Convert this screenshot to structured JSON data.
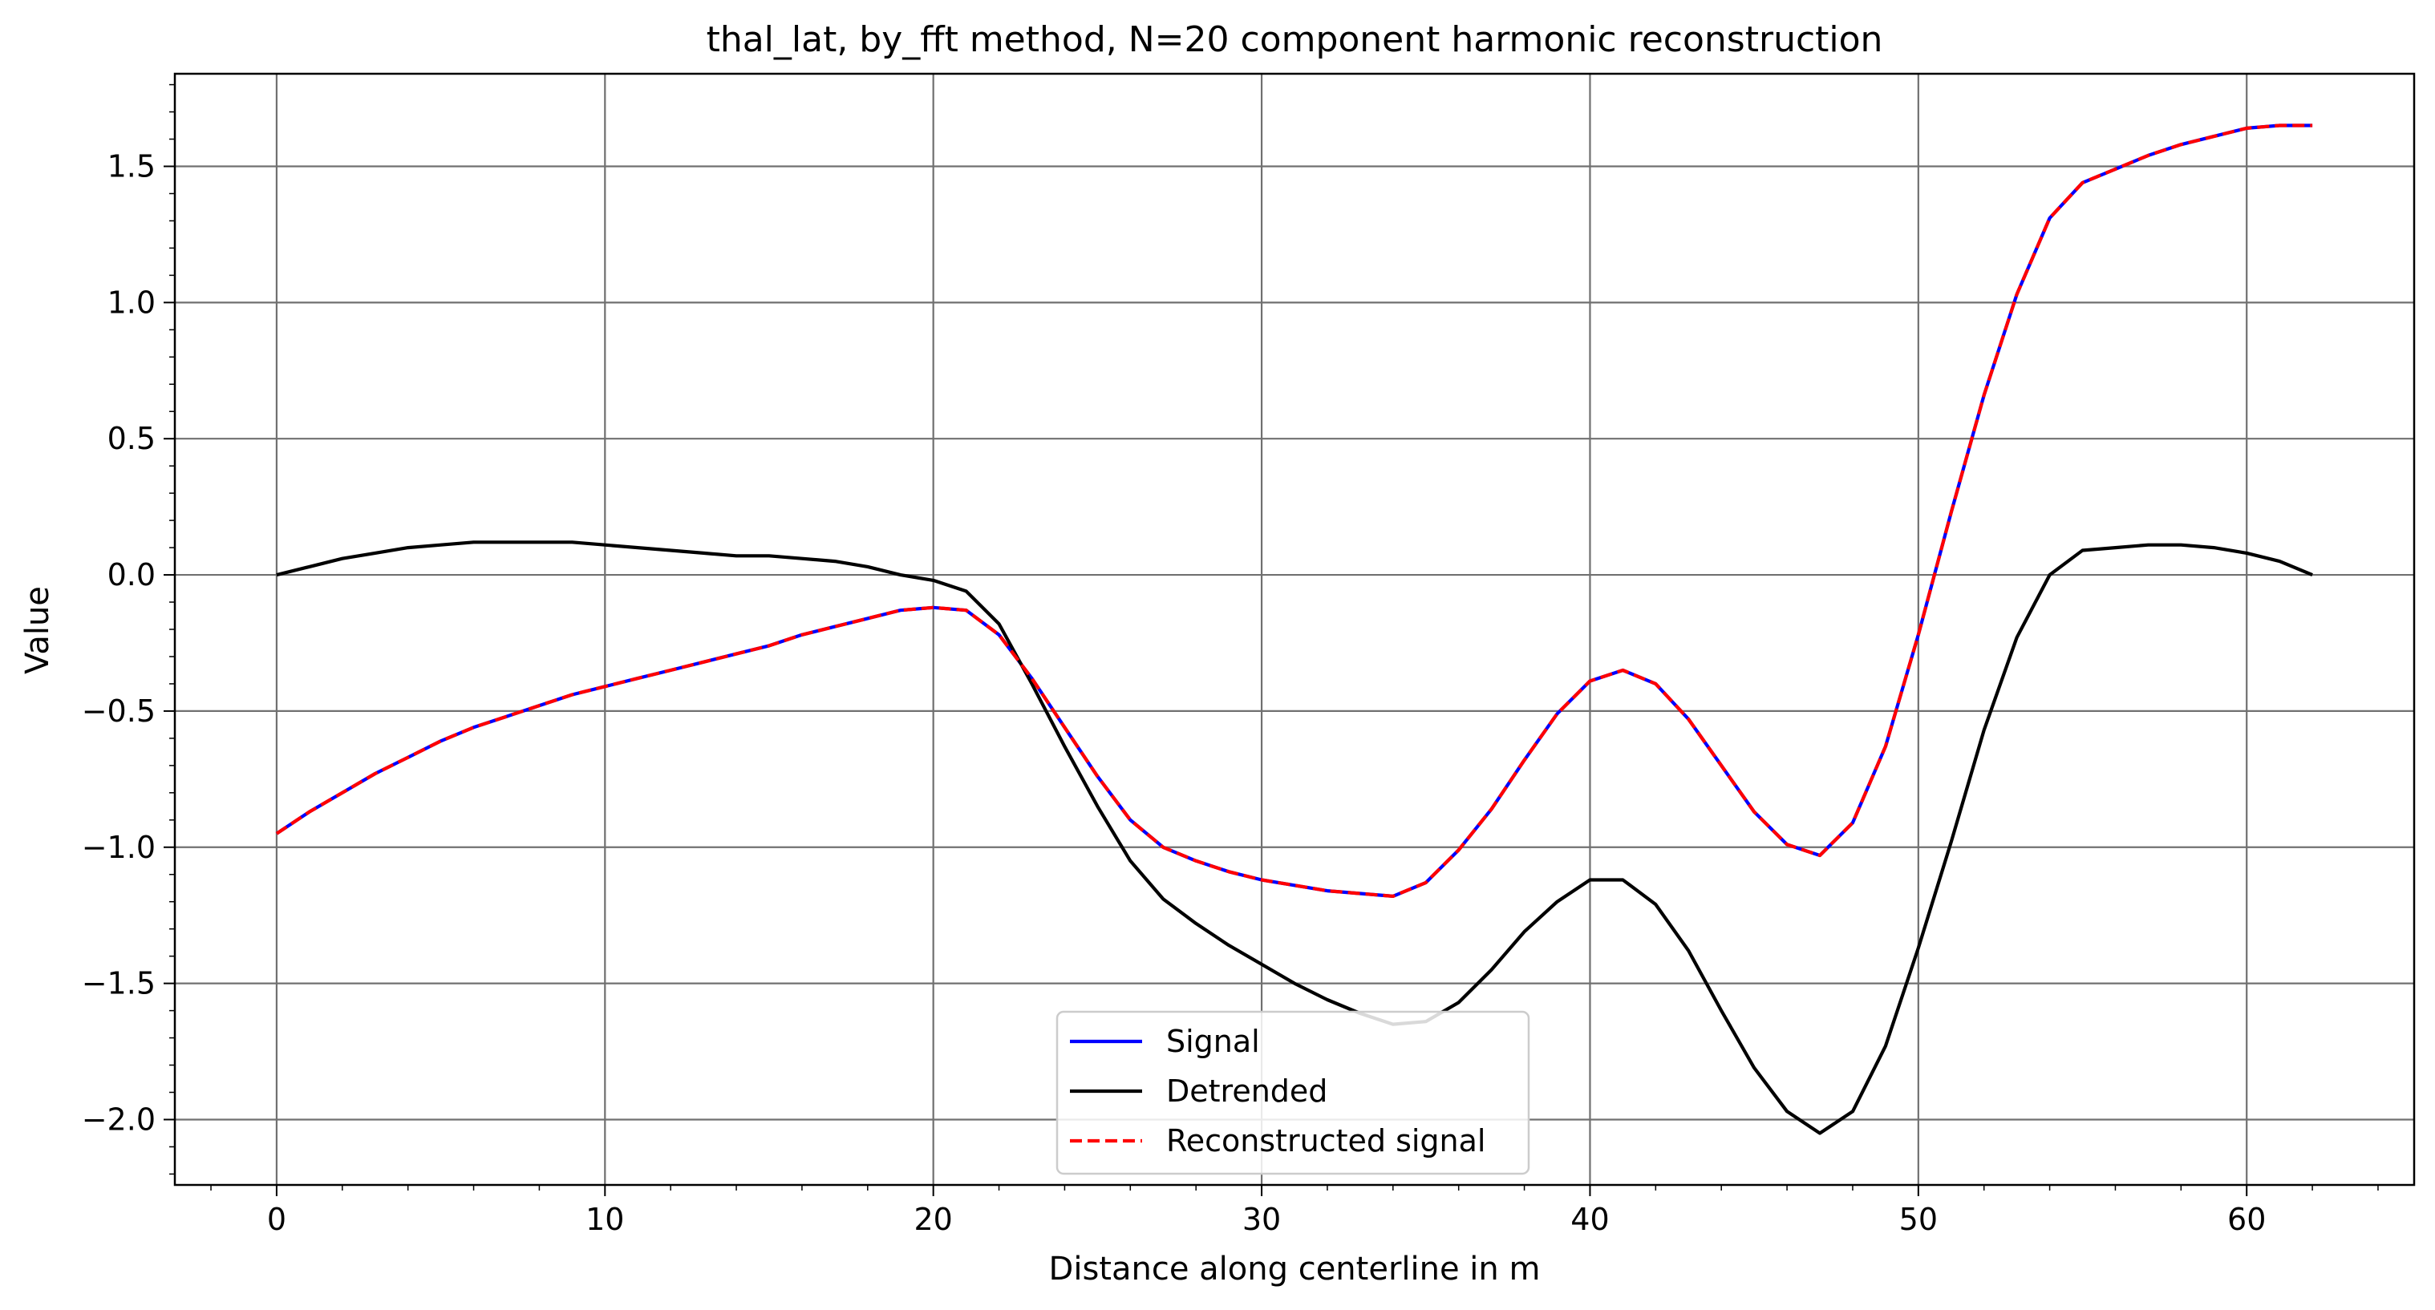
{
  "chart_data": {
    "type": "line",
    "title": "thal_lat, by_fft method, N=20 component harmonic reconstruction",
    "xlabel": "Distance along centerline in m",
    "ylabel": "Value",
    "xlim": [
      -3.1,
      65.1
    ],
    "ylim": [
      -2.24,
      1.84
    ],
    "xticks": [
      0,
      10,
      20,
      30,
      40,
      50,
      60
    ],
    "yticks": [
      -2.0,
      -1.5,
      -1.0,
      -0.5,
      0.0,
      0.5,
      1.0,
      1.5
    ],
    "grid": true,
    "legend_position": "lower-center",
    "series": [
      {
        "name": "Signal",
        "color": "#0000ff",
        "style": "solid",
        "x": [
          0,
          1,
          2,
          3,
          4,
          5,
          6,
          7,
          8,
          9,
          10,
          11,
          12,
          13,
          14,
          15,
          16,
          17,
          18,
          19,
          20,
          21,
          22,
          23,
          24,
          25,
          26,
          27,
          28,
          29,
          30,
          31,
          32,
          33,
          34,
          35,
          36,
          37,
          38,
          39,
          40,
          41,
          42,
          43,
          44,
          45,
          46,
          47,
          48,
          49,
          50,
          51,
          52,
          53,
          54,
          55,
          56,
          57,
          58,
          59,
          60,
          61,
          62
        ],
        "y": [
          -0.95,
          -0.87,
          -0.8,
          -0.73,
          -0.67,
          -0.61,
          -0.56,
          -0.52,
          -0.48,
          -0.44,
          -0.41,
          -0.38,
          -0.35,
          -0.32,
          -0.29,
          -0.26,
          -0.22,
          -0.19,
          -0.16,
          -0.13,
          -0.12,
          -0.13,
          -0.22,
          -0.38,
          -0.56,
          -0.74,
          -0.9,
          -1.0,
          -1.05,
          -1.09,
          -1.12,
          -1.14,
          -1.16,
          -1.17,
          -1.18,
          -1.13,
          -1.01,
          -0.86,
          -0.68,
          -0.51,
          -0.39,
          -0.35,
          -0.4,
          -0.53,
          -0.7,
          -0.87,
          -0.99,
          -1.03,
          -0.91,
          -0.63,
          -0.22,
          0.23,
          0.66,
          1.03,
          1.31,
          1.44,
          1.49,
          1.54,
          1.58,
          1.61,
          1.64,
          1.65,
          1.65
        ]
      },
      {
        "name": "Detrended",
        "color": "#000000",
        "style": "solid",
        "x": [
          0,
          1,
          2,
          3,
          4,
          5,
          6,
          7,
          8,
          9,
          10,
          11,
          12,
          13,
          14,
          15,
          16,
          17,
          18,
          19,
          20,
          21,
          22,
          23,
          24,
          25,
          26,
          27,
          28,
          29,
          30,
          31,
          32,
          33,
          34,
          35,
          36,
          37,
          38,
          39,
          40,
          41,
          42,
          43,
          44,
          45,
          46,
          47,
          48,
          49,
          50,
          51,
          52,
          53,
          54,
          55,
          56,
          57,
          58,
          59,
          60,
          61,
          62
        ],
        "y": [
          0.0,
          0.03,
          0.06,
          0.08,
          0.1,
          0.11,
          0.12,
          0.12,
          0.12,
          0.12,
          0.11,
          0.1,
          0.09,
          0.08,
          0.07,
          0.07,
          0.06,
          0.05,
          0.03,
          0.0,
          -0.02,
          -0.06,
          -0.18,
          -0.4,
          -0.63,
          -0.85,
          -1.05,
          -1.19,
          -1.28,
          -1.36,
          -1.43,
          -1.5,
          -1.56,
          -1.61,
          -1.65,
          -1.64,
          -1.57,
          -1.45,
          -1.31,
          -1.2,
          -1.12,
          -1.12,
          -1.21,
          -1.38,
          -1.6,
          -1.81,
          -1.97,
          -2.05,
          -1.97,
          -1.73,
          -1.37,
          -0.98,
          -0.57,
          -0.23,
          0.0,
          0.09,
          0.1,
          0.11,
          0.11,
          0.1,
          0.08,
          0.05,
          0.0
        ]
      },
      {
        "name": "Reconstructed signal",
        "color": "#ff0000",
        "style": "dashed",
        "x": [
          0,
          1,
          2,
          3,
          4,
          5,
          6,
          7,
          8,
          9,
          10,
          11,
          12,
          13,
          14,
          15,
          16,
          17,
          18,
          19,
          20,
          21,
          22,
          23,
          24,
          25,
          26,
          27,
          28,
          29,
          30,
          31,
          32,
          33,
          34,
          35,
          36,
          37,
          38,
          39,
          40,
          41,
          42,
          43,
          44,
          45,
          46,
          47,
          48,
          49,
          50,
          51,
          52,
          53,
          54,
          55,
          56,
          57,
          58,
          59,
          60,
          61,
          62
        ],
        "y": [
          -0.95,
          -0.87,
          -0.8,
          -0.73,
          -0.67,
          -0.61,
          -0.56,
          -0.52,
          -0.48,
          -0.44,
          -0.41,
          -0.38,
          -0.35,
          -0.32,
          -0.29,
          -0.26,
          -0.22,
          -0.19,
          -0.16,
          -0.13,
          -0.12,
          -0.13,
          -0.22,
          -0.38,
          -0.56,
          -0.74,
          -0.9,
          -1.0,
          -1.05,
          -1.09,
          -1.12,
          -1.14,
          -1.16,
          -1.17,
          -1.18,
          -1.13,
          -1.01,
          -0.86,
          -0.68,
          -0.51,
          -0.39,
          -0.35,
          -0.4,
          -0.53,
          -0.7,
          -0.87,
          -0.99,
          -1.03,
          -0.91,
          -0.63,
          -0.22,
          0.23,
          0.66,
          1.03,
          1.31,
          1.44,
          1.49,
          1.54,
          1.58,
          1.61,
          1.64,
          1.65,
          1.65
        ]
      }
    ]
  }
}
